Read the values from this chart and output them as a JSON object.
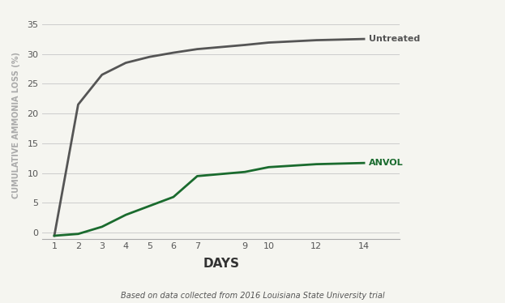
{
  "untreated_x": [
    1,
    2,
    3,
    4,
    5,
    6,
    7,
    9,
    10,
    12,
    14
  ],
  "untreated_y": [
    -0.5,
    21.5,
    26.5,
    28.5,
    29.5,
    30.2,
    30.8,
    31.5,
    31.9,
    32.3,
    32.5
  ],
  "anvol_x": [
    1,
    2,
    3,
    4,
    5,
    6,
    7,
    9,
    10,
    12,
    14
  ],
  "anvol_y": [
    -0.5,
    -0.2,
    1.0,
    3.0,
    4.5,
    6.0,
    9.5,
    10.2,
    11.0,
    11.5,
    11.7
  ],
  "untreated_color": "#555555",
  "anvol_color": "#1a6b2e",
  "untreated_label": "Untreated",
  "anvol_label": "ANVOL",
  "xlabel": "DAYS",
  "ylabel": "CUMULATIVE AMMONIA LOSS (%)",
  "subtitle": "Based on data collected from 2016 Louisiana State University trial",
  "ylim": [
    -1,
    37
  ],
  "yticks": [
    0,
    5,
    10,
    15,
    20,
    25,
    30,
    35
  ],
  "xticks": [
    1,
    2,
    3,
    4,
    5,
    6,
    7,
    9,
    10,
    12,
    14
  ],
  "background_color": "#f5f5f0",
  "line_width": 2.0,
  "grid_color": "#cccccc",
  "label_fontsize": 8,
  "xlabel_fontsize": 11,
  "ylabel_fontsize": 7.0,
  "subtitle_fontsize": 7
}
